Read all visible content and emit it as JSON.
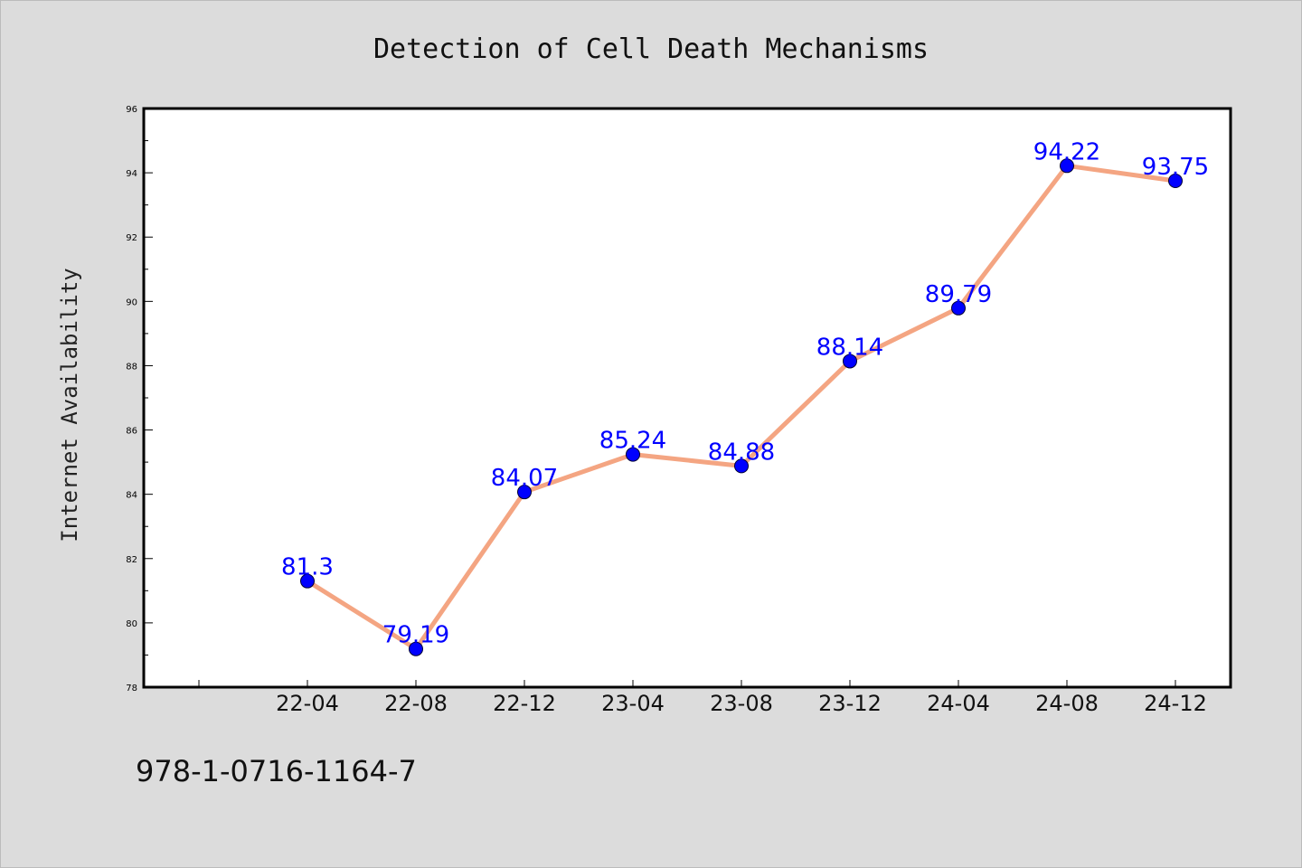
{
  "chart_data": {
    "type": "line",
    "title": "Detection of Cell Death Mechanisms",
    "xlabel": "",
    "ylabel": "Internet Availability",
    "categories": [
      "22-04",
      "22-08",
      "22-12",
      "23-04",
      "23-08",
      "23-12",
      "24-04",
      "24-08",
      "24-12"
    ],
    "series": [
      {
        "values": [
          81.3,
          79.19,
          84.07,
          85.24,
          84.88,
          88.14,
          89.79,
          94.22,
          93.75
        ],
        "data_labels": [
          "81.3",
          "79.19",
          "84.07",
          "85.24",
          "84.88",
          "88.14",
          "89.79",
          "94.22",
          "93.75"
        ],
        "line_color": "#f4a582",
        "marker_color": "#0000ff",
        "label_color": "#0000ff"
      }
    ],
    "ylim": [
      78,
      96
    ],
    "yticks": [
      "78",
      "80",
      "82",
      "84",
      "86",
      "88",
      "90",
      "92",
      "94",
      "96"
    ],
    "grid": false,
    "legend": "none"
  },
  "footer": {
    "isbn": "978-1-0716-1164-7"
  },
  "colors": {
    "background": "#dcdcdc",
    "plot_background": "#ffffff",
    "axes": "#000000"
  }
}
